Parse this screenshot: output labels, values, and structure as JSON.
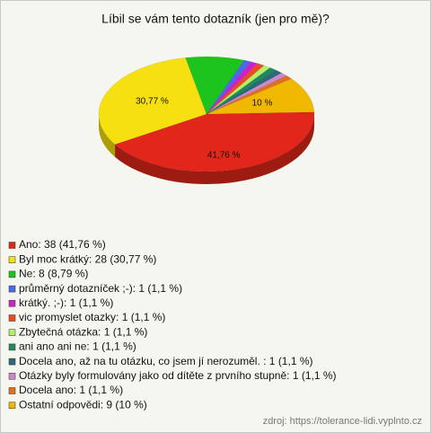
{
  "chart_data": {
    "type": "pie",
    "title": "Líbil se vám tento dotazník (jen pro mě)?",
    "categories": [
      "Ano: 38 (41,76 %)",
      "Byl moc krátký: 28 (30,77 %)",
      "Ne: 8 (8,79 %)",
      "průměrný dotazníček ;-): 1 (1,1 %)",
      "krátký. ;-): 1 (1,1 %)",
      "vic promyslet otazky: 1 (1,1 %)",
      "Zbytečná otázka: 1 (1,1 %)",
      "ani ano ani ne: 1 (1,1 %)",
      "Docela ano, až na tu otázku, co jsem jí nerozuměl. : 1 (1,1 %)",
      "Otázky byly formulovány jako od dítěte z prvního stupně: 1 (1,1 %)",
      "Docela ano: 1 (1,1 %)",
      "Ostatní odpovědi: 9 (10 %)"
    ],
    "values": [
      41.76,
      30.77,
      8.79,
      1.1,
      1.1,
      1.1,
      1.1,
      1.1,
      1.1,
      1.1,
      1.1,
      10
    ],
    "value_labels": [
      "41,76 %",
      "30,77 %",
      null,
      null,
      null,
      null,
      null,
      null,
      null,
      null,
      null,
      "10 %"
    ],
    "colors": [
      "#e2261a",
      "#f6e010",
      "#1ec41e",
      "#4a6ae8",
      "#cc22cc",
      "#ee4a22",
      "#b4ee6a",
      "#208a5a",
      "#2a6a7a",
      "#cc88cc",
      "#e07020",
      "#f0b800"
    ],
    "source": "zdroj: https://tolerance-lidi.vyplnto.cz"
  }
}
